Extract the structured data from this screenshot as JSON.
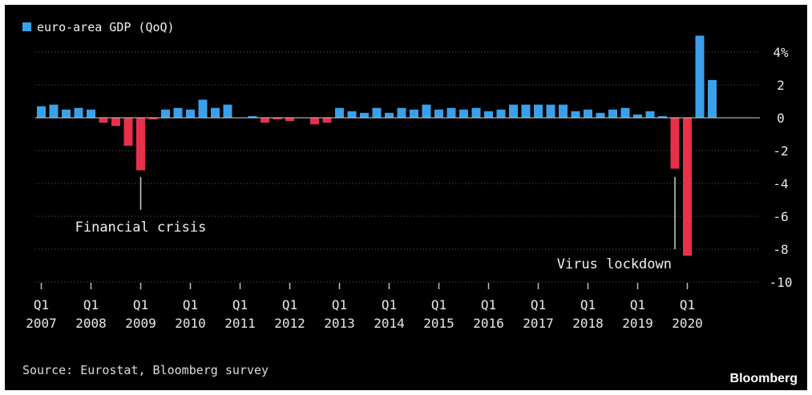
{
  "chart_data": {
    "type": "bar",
    "legend": {
      "label": "euro-area GDP (QoQ)",
      "color": "#3aa0ea",
      "position": "top-left"
    },
    "negative_color": "#e8304a",
    "y_axis": {
      "range": [
        -10,
        5
      ],
      "ticks": [
        {
          "value": 4,
          "label": "4%"
        },
        {
          "value": 2,
          "label": "2"
        },
        {
          "value": 0,
          "label": "0"
        },
        {
          "value": -2,
          "label": "-2"
        },
        {
          "value": -4,
          "label": "-4"
        },
        {
          "value": -6,
          "label": "-6"
        },
        {
          "value": -8,
          "label": "-8"
        },
        {
          "value": -10,
          "label": "-10"
        }
      ],
      "position": "right",
      "grid": "dotted"
    },
    "x_axis": {
      "labels": [
        {
          "q": "Q1",
          "year": "2007"
        },
        {
          "q": "Q1",
          "year": "2008"
        },
        {
          "q": "Q1",
          "year": "2009"
        },
        {
          "q": "Q1",
          "year": "2010"
        },
        {
          "q": "Q1",
          "year": "2011"
        },
        {
          "q": "Q1",
          "year": "2012"
        },
        {
          "q": "Q1",
          "year": "2013"
        },
        {
          "q": "Q1",
          "year": "2014"
        },
        {
          "q": "Q1",
          "year": "2015"
        },
        {
          "q": "Q1",
          "year": "2016"
        },
        {
          "q": "Q1",
          "year": "2017"
        },
        {
          "q": "Q1",
          "year": "2018"
        },
        {
          "q": "Q1",
          "year": "2019"
        },
        {
          "q": "Q1",
          "year": "2020"
        }
      ]
    },
    "values": [
      0.7,
      0.8,
      0.5,
      0.6,
      0.5,
      -0.3,
      -0.5,
      -1.7,
      -3.2,
      -0.1,
      0.5,
      0.6,
      0.5,
      1.1,
      0.6,
      0.8,
      0.0,
      0.1,
      -0.3,
      -0.1,
      -0.2,
      0.0,
      -0.4,
      -0.3,
      0.6,
      0.4,
      0.3,
      0.6,
      0.3,
      0.6,
      0.5,
      0.8,
      0.5,
      0.6,
      0.5,
      0.6,
      0.4,
      0.5,
      0.8,
      0.8,
      0.8,
      0.8,
      0.8,
      0.4,
      0.5,
      0.3,
      0.5,
      0.6,
      0.2,
      0.4,
      0.1,
      -3.1,
      -8.4,
      5.0,
      2.3
    ],
    "annotations": [
      {
        "text": "Financial crisis",
        "bar_index": 8,
        "line_from": -3.6,
        "line_to": -5.6
      },
      {
        "text": "Virus lockdown",
        "bar_index": 51,
        "line_from": -3.6,
        "line_to": -8.0
      }
    ]
  },
  "footer": {
    "source": "Source: Eurostat, Bloomberg survey",
    "brand": "Bloomberg"
  }
}
